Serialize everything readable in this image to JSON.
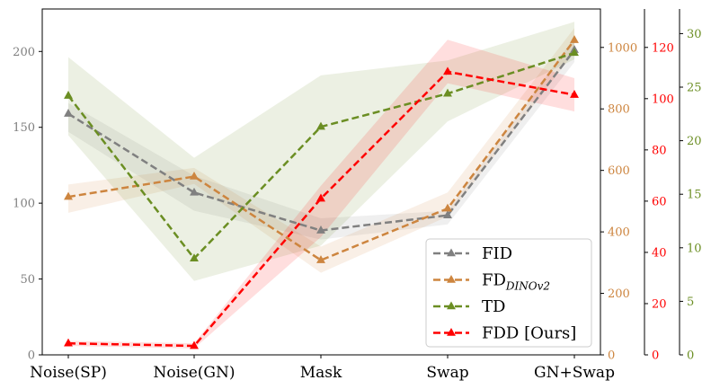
{
  "chart_data": {
    "type": "line",
    "categories": [
      "Noise(SP)",
      "Noise(GN)",
      "Mask",
      "Swap",
      "GN+Swap"
    ],
    "axes": [
      {
        "id": "fid",
        "name": "FID axis",
        "side": "left",
        "color": "#808080",
        "ylim": [
          0,
          228
        ],
        "ticks": [
          0,
          50,
          100,
          150,
          200
        ]
      },
      {
        "id": "fd",
        "name": "FD DINOv2 axis",
        "side": "right-1",
        "color": "#cd853f",
        "ylim": [
          0,
          1125
        ],
        "ticks": [
          0,
          200,
          400,
          600,
          800,
          1000
        ]
      },
      {
        "id": "fdd",
        "name": "FDD axis",
        "side": "right-2",
        "color": "#ff0000",
        "ylim": [
          0,
          135
        ],
        "ticks": [
          0,
          20,
          40,
          60,
          80,
          100,
          120
        ]
      },
      {
        "id": "td",
        "name": "TD axis",
        "side": "right-3",
        "color": "#6b8e23",
        "ylim": [
          0,
          32.3
        ],
        "ticks": [
          0,
          5,
          10,
          15,
          20,
          25,
          30
        ]
      }
    ],
    "series": [
      {
        "name": "FID",
        "axis": "fid",
        "color": "#808080",
        "values": [
          159,
          107,
          82,
          92,
          201
        ],
        "band_low": [
          147,
          95,
          76,
          86,
          193
        ],
        "band_high": [
          166,
          118,
          90,
          95,
          209
        ]
      },
      {
        "name": "FD",
        "subscript": "DINOv2",
        "axis": "fd",
        "color": "#cd853f",
        "values": [
          514,
          580,
          308,
          476,
          1024
        ],
        "band_low": [
          462,
          556,
          267,
          450,
          985
        ],
        "band_high": [
          554,
          608,
          352,
          528,
          1063
        ]
      },
      {
        "name": "TD",
        "axis": "td",
        "color": "#6b8e23",
        "values": [
          24.2,
          9.0,
          21.3,
          24.4,
          28.2
        ],
        "band_low": [
          20.5,
          6.9,
          10.2,
          21.8,
          27.6
        ],
        "band_high": [
          27.8,
          18.4,
          26.1,
          27.5,
          31.1
        ]
      },
      {
        "name": "FDD [Ours]",
        "axis": "fdd",
        "color": "#ff0000",
        "values": [
          4.5,
          3.5,
          61,
          110.5,
          101.5
        ],
        "band_low": [
          3.5,
          2.5,
          46,
          106,
          95
        ],
        "band_high": [
          5.5,
          4.5,
          66,
          123,
          108
        ]
      }
    ],
    "legend": {
      "position": "bottom-right",
      "entries": [
        "FID",
        "FD",
        "TD",
        "FDD [Ours]"
      ]
    },
    "title": "",
    "xlabel": "",
    "ylabel": "",
    "grid": false
  }
}
